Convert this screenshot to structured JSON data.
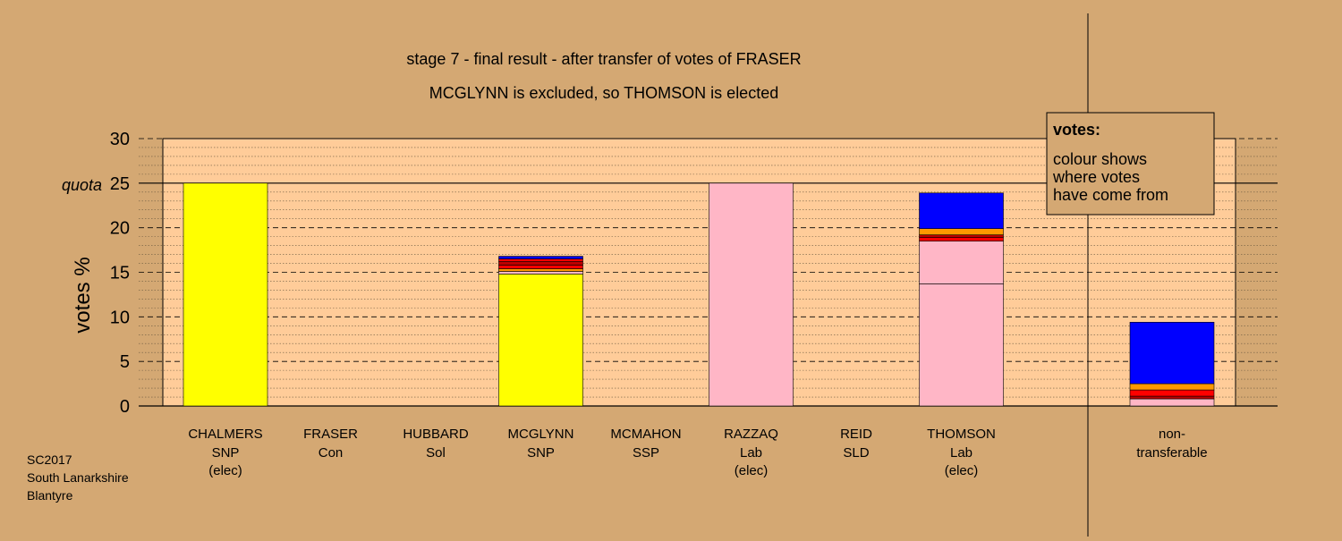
{
  "chart_data": {
    "type": "bar",
    "title": "stage 7 - final result - after transfer of votes of FRASER",
    "subtitle": "MCGLYNN is excluded, so THOMSON is elected",
    "ylabel": "votes %",
    "ylim": [
      0,
      30
    ],
    "yticks": [
      "0",
      "5",
      "10",
      "15",
      "20",
      "25",
      "30"
    ],
    "quota": {
      "label": "quota",
      "value": 25
    },
    "grid": true,
    "candidates": [
      {
        "name": "CHALMERS",
        "party": "SNP",
        "status": "(elec)",
        "segments": [
          {
            "value": 25.0,
            "color": "#FFFF00"
          }
        ]
      },
      {
        "name": "FRASER",
        "party": "Con",
        "status": "",
        "segments": []
      },
      {
        "name": "HUBBARD",
        "party": "Sol",
        "status": "",
        "segments": []
      },
      {
        "name": "MCGLYNN",
        "party": "SNP",
        "status": "",
        "segments": [
          {
            "value": 14.8,
            "color": "#FFFF00"
          },
          {
            "value": 0.3,
            "color": "#FFB6C6"
          },
          {
            "value": 0.3,
            "color": "#FF9900"
          },
          {
            "value": 0.4,
            "color": "#FF0000"
          },
          {
            "value": 0.4,
            "color": "#BB0000"
          },
          {
            "value": 0.3,
            "color": "#FF0000"
          },
          {
            "value": 0.3,
            "color": "#0000FF"
          }
        ]
      },
      {
        "name": "MCMAHON",
        "party": "SSP",
        "status": "",
        "segments": []
      },
      {
        "name": "RAZZAQ",
        "party": "Lab",
        "status": "(elec)",
        "segments": [
          {
            "value": 25.0,
            "color": "#FFB6C6"
          }
        ]
      },
      {
        "name": "REID",
        "party": "SLD",
        "status": "",
        "segments": []
      },
      {
        "name": "THOMSON",
        "party": "Lab",
        "status": "(elec)",
        "segments": [
          {
            "value": 13.7,
            "color": "#FFB6C6"
          },
          {
            "value": 4.8,
            "color": "#FFB6C6"
          },
          {
            "value": 0.4,
            "color": "#FF0000"
          },
          {
            "value": 0.3,
            "color": "#BB0000"
          },
          {
            "value": 0.7,
            "color": "#FF9900"
          },
          {
            "value": 4.0,
            "color": "#0000FF"
          }
        ]
      }
    ],
    "nontransferable": {
      "label_line1": "non-",
      "label_line2": "transferable",
      "segments": [
        {
          "value": 0.8,
          "color": "#FFB6C6"
        },
        {
          "value": 0.3,
          "color": "#BB0000"
        },
        {
          "value": 0.7,
          "color": "#FF0000"
        },
        {
          "value": 0.7,
          "color": "#FF9900"
        },
        {
          "value": 6.9,
          "color": "#0000FF"
        }
      ]
    },
    "legend": {
      "title": "votes:",
      "lines": [
        "colour shows",
        "where votes",
        "have come from"
      ]
    },
    "colors": {
      "background": "#D4A873",
      "plot_bg": "#FFCC99"
    }
  },
  "footer": {
    "lines": [
      "SC2017",
      "South Lanarkshire",
      "Blantyre"
    ]
  }
}
